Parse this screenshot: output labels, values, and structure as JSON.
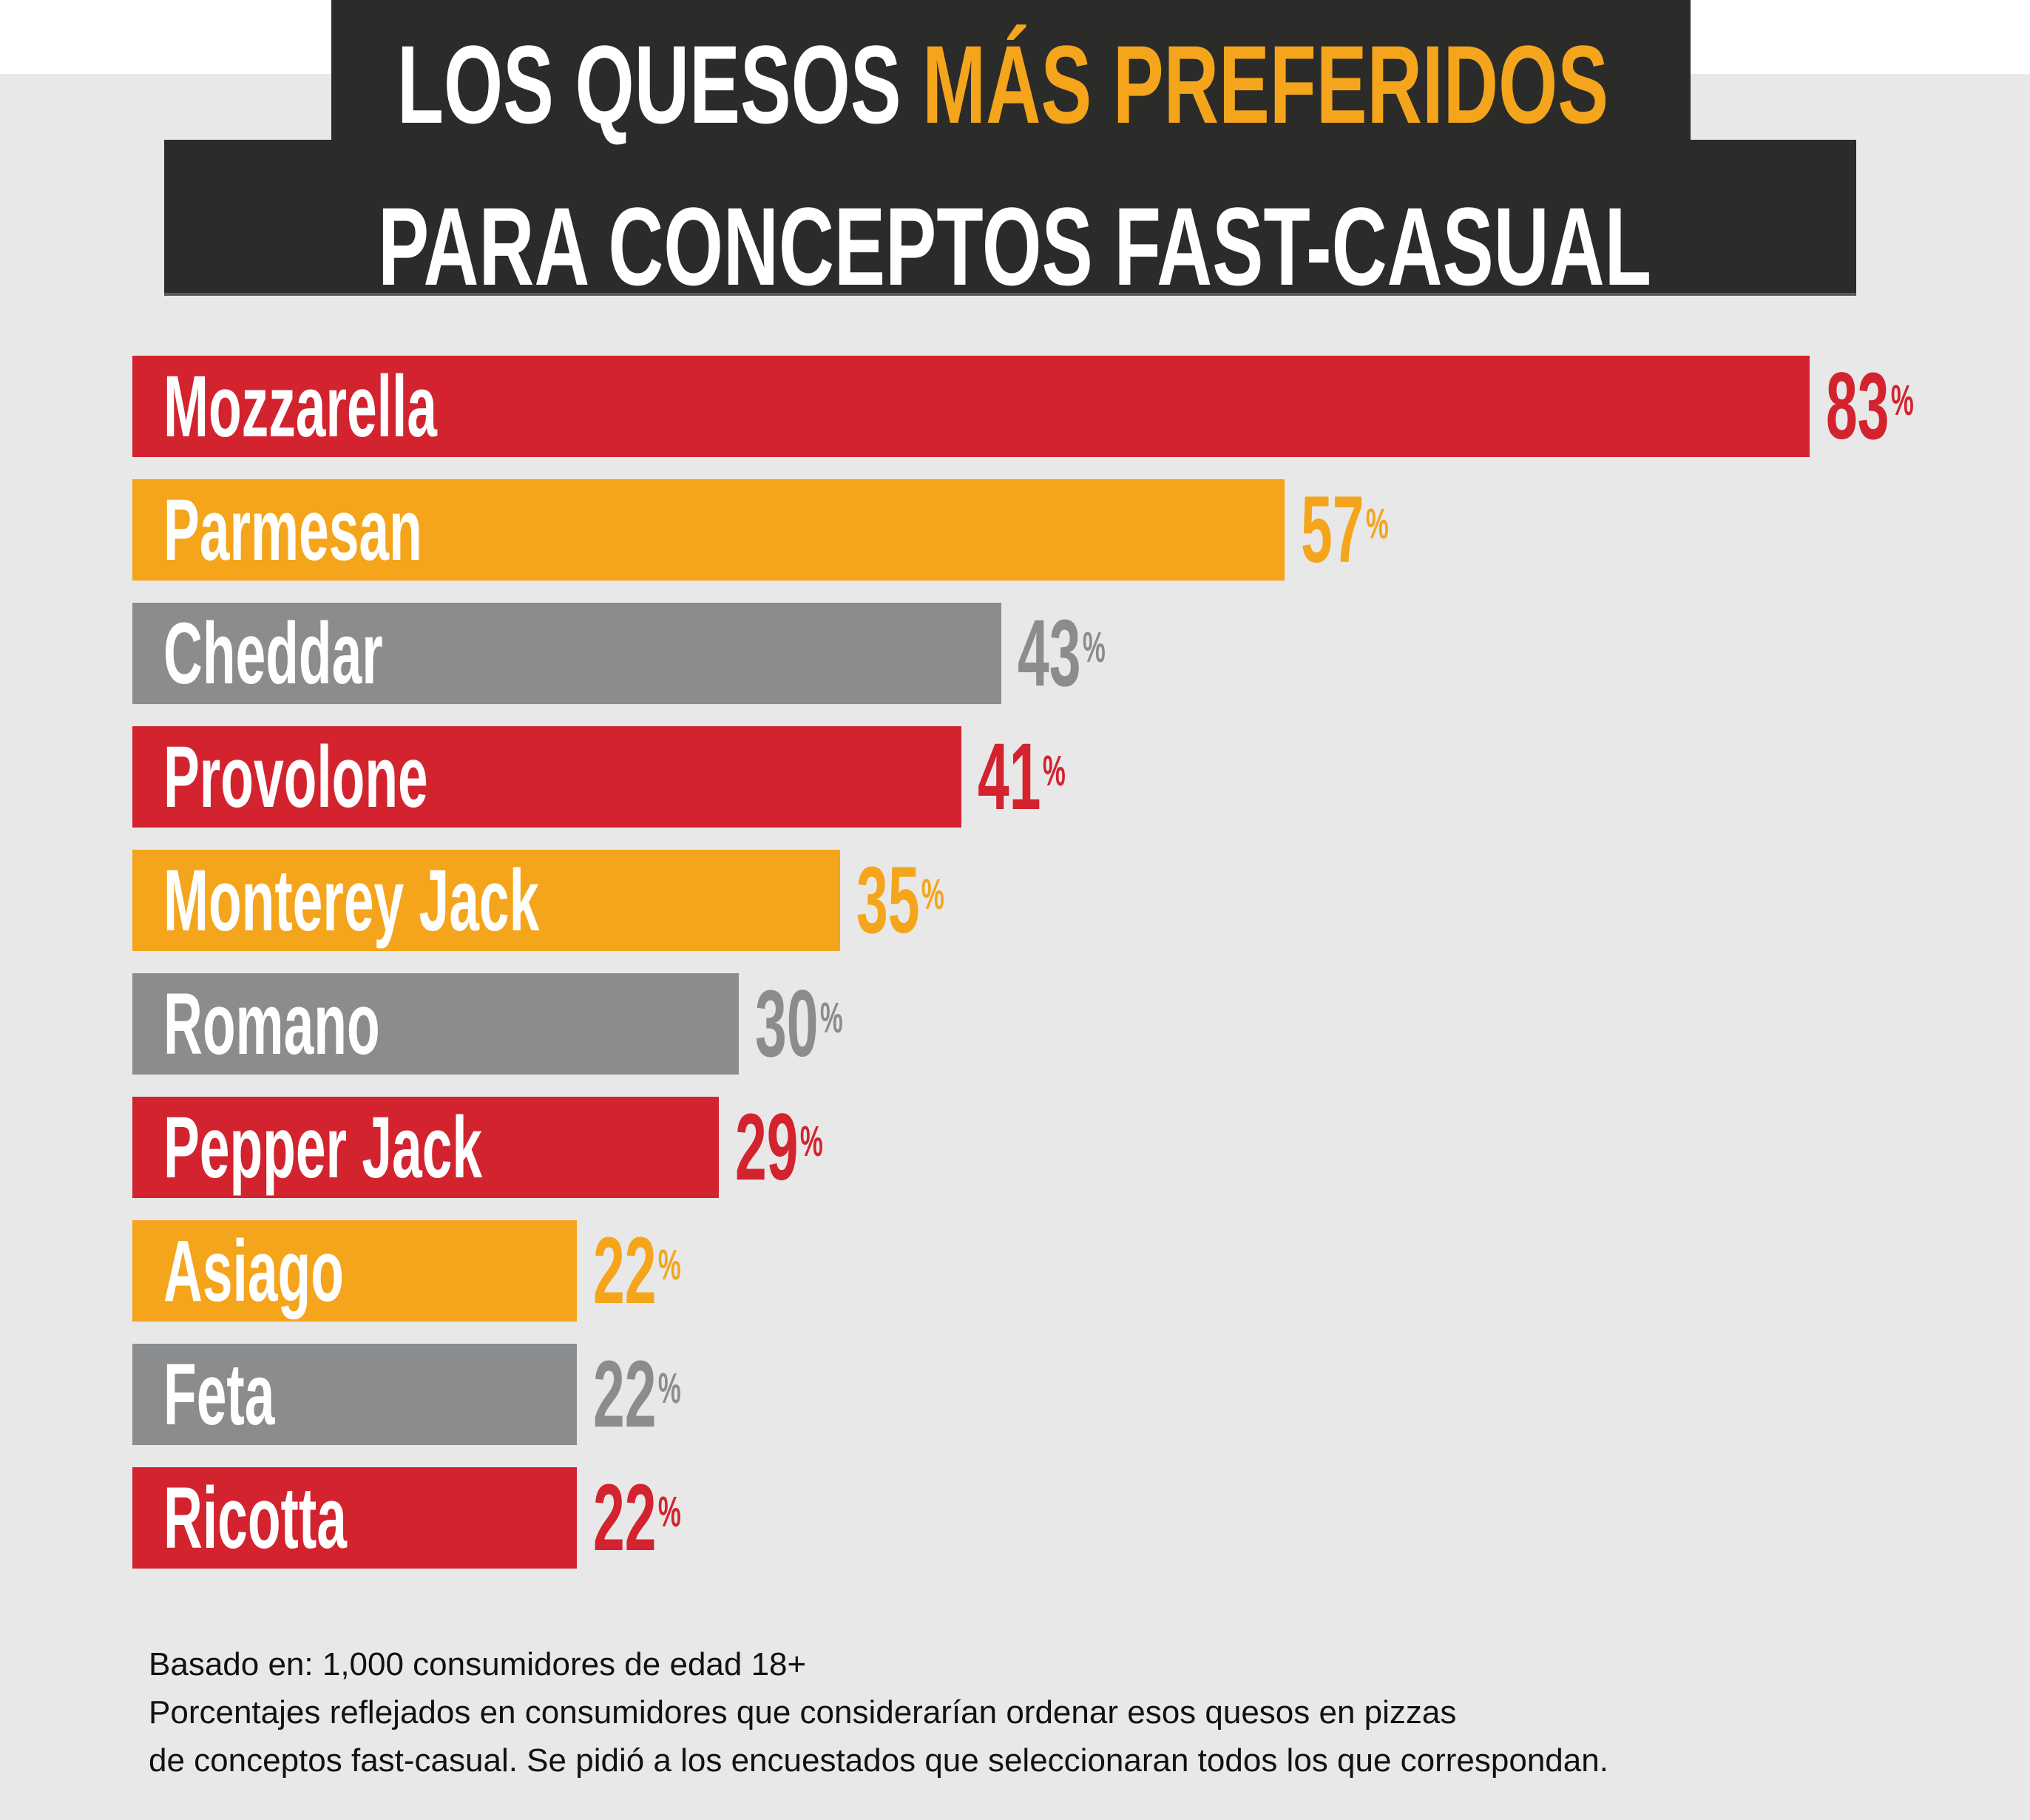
{
  "title": {
    "line1_part1": "LOS QUESOS ",
    "line1_part2": "MÁS PREFERIDOS",
    "line2": "PARA CONCEPTOS FAST-CASUAL"
  },
  "colors": {
    "red": "#d2232f",
    "orange": "#f4a51c",
    "gray": "#8a8c8e",
    "dark": "#2b2b29",
    "title_accent": "#f4a51c"
  },
  "chart_data": {
    "type": "bar",
    "orientation": "horizontal",
    "title": "LOS QUESOS MÁS PREFERIDOS PARA CONCEPTOS FAST-CASUAL",
    "unit": "%",
    "xlim": [
      0,
      100
    ],
    "grid": false,
    "categories": [
      "Mozzarella",
      "Parmesan",
      "Cheddar",
      "Provolone",
      "Monterey Jack",
      "Romano",
      "Pepper Jack",
      "Asiago",
      "Feta",
      "Ricotta"
    ],
    "values": [
      83,
      57,
      43,
      41,
      35,
      30,
      29,
      22,
      22,
      22
    ],
    "bar_colors": [
      "#d2232f",
      "#f4a51c",
      "#8a8c8e",
      "#d2232f",
      "#f4a51c",
      "#8a8c8e",
      "#d2232f",
      "#f4a51c",
      "#8a8c8e",
      "#d2232f"
    ]
  },
  "footer": {
    "line1": "Basado en: 1,000 consumidores de edad 18+",
    "line2": "Porcentajes reflejados en consumidores que considerarían ordenar esos quesos en pizzas",
    "line3": "de conceptos fast-casual. Se pidió a los encuestados que seleccionaran todos los que correspondan."
  }
}
